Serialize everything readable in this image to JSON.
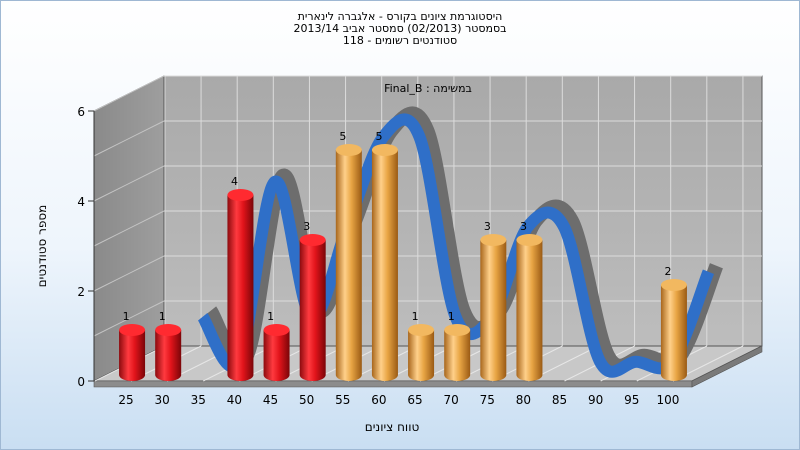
{
  "chart_data": {
    "type": "bar",
    "title_lines": [
      "היסטוגרמת ציונים בקורס - אלגברה לינארית",
      "בסמסטר  (02/2013)  סמסטר אביב 2013/14",
      "סטודנטים רשומים - 118"
    ],
    "subtitle": "במשימה : Final_B",
    "xlabel": "טווח ציונים",
    "ylabel": "מספר סטודנטים",
    "categories": [
      "25",
      "30",
      "35",
      "40",
      "45",
      "50",
      "55",
      "60",
      "65",
      "70",
      "75",
      "80",
      "85",
      "90",
      "95",
      "100"
    ],
    "values": [
      1,
      1,
      0,
      4,
      1,
      3,
      5,
      5,
      1,
      1,
      3,
      3,
      0,
      0,
      0,
      2
    ],
    "bar_colors": {
      "failing": "#e2141b",
      "passing": "#e8a544"
    },
    "pass_threshold_category": "55",
    "ylim": [
      0,
      6
    ],
    "yticks": [
      0,
      2,
      4,
      6
    ],
    "trend_line": true,
    "trend_colors": {
      "front": "#2f6fc8",
      "back": "#6d6d6d"
    },
    "grid": true
  }
}
